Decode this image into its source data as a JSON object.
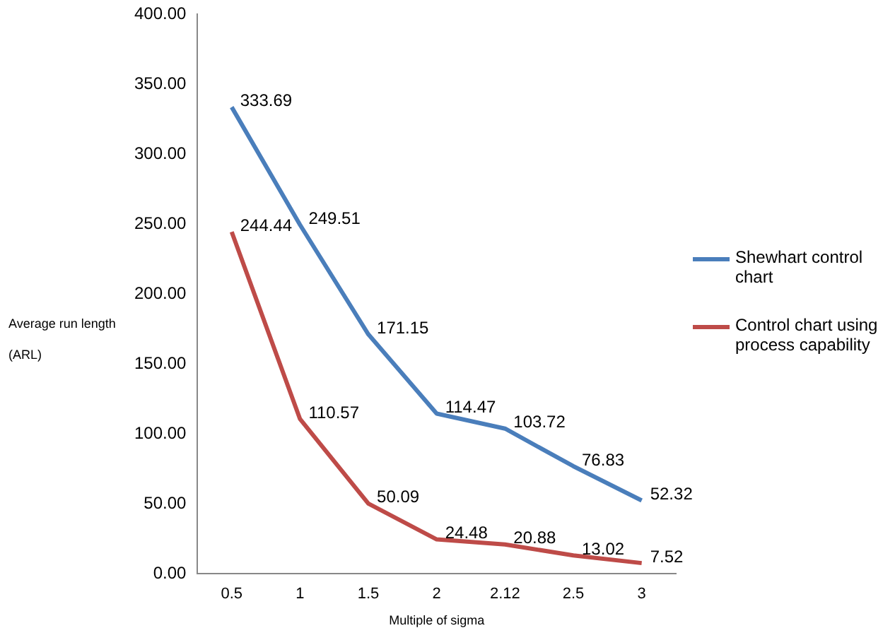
{
  "chart_data": {
    "type": "line",
    "xlabel": "Multiple of sigma",
    "ylabel": "Average run length\n(ARL)",
    "categories": [
      "0.5",
      "1",
      "1.5",
      "2",
      "2.12",
      "2.5",
      "3"
    ],
    "series": [
      {
        "name": "Shewhart control chart",
        "color": "#4a7ebb",
        "values": [
          333.69,
          249.51,
          171.15,
          114.47,
          103.72,
          76.83,
          52.32
        ]
      },
      {
        "name": "Control chart using process capability",
        "color": "#be4b48",
        "values": [
          244.44,
          110.57,
          50.09,
          24.48,
          20.88,
          13.02,
          7.52
        ]
      }
    ],
    "ylim": [
      0,
      400
    ],
    "yticks": [
      {
        "value": 0,
        "label": "0.00"
      },
      {
        "value": 50,
        "label": "50.00"
      },
      {
        "value": 100,
        "label": "100.00"
      },
      {
        "value": 150,
        "label": "150.00"
      },
      {
        "value": 200,
        "label": "200.00"
      },
      {
        "value": 250,
        "label": "250.00"
      },
      {
        "value": 300,
        "label": "300.00"
      },
      {
        "value": 350,
        "label": "350.00"
      },
      {
        "value": 400,
        "label": "400.00"
      }
    ],
    "grid": false,
    "legend": "right",
    "marker": "none",
    "line_style": "solid",
    "data_labels": true
  }
}
